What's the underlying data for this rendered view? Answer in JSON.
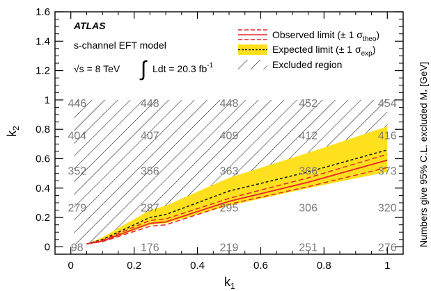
{
  "chart_data": {
    "type": "line",
    "title": "",
    "xlabel": "k",
    "xlabel_sub": "1",
    "ylabel": "k",
    "ylabel_sub": "2",
    "right_label": "Numbers give 95% C.L. excluded M",
    "right_label_sub": "*",
    "right_label_unit": " [GeV]",
    "xlim": [
      -0.05,
      1.05
    ],
    "ylim": [
      -0.05,
      1.6
    ],
    "xticks": [
      0,
      0.2,
      0.4,
      0.6,
      0.8,
      1
    ],
    "xtick_labels": [
      "0",
      "0.2",
      "0.4",
      "0.6",
      "0.8",
      "1"
    ],
    "yticks": [
      0,
      0.2,
      0.4,
      0.6,
      0.8,
      1,
      1.2,
      1.4,
      1.6
    ],
    "ytick_labels": [
      "0",
      "0.2",
      "0.4",
      "0.6",
      "0.8",
      "1",
      "1.2",
      "1.4",
      "1.6"
    ],
    "annotations": {
      "experiment": "ATLAS",
      "model": "s-channel EFT model",
      "sqrt_s_symbol": "√s",
      "sqrt_s_value": " = 8 TeV",
      "lumi_integral": "∫",
      "lumi_text": "Ldt = 20.3 fb",
      "lumi_sup": "-1"
    },
    "legend": {
      "placement": "top-right",
      "entries": [
        {
          "label": "Observed limit (± 1 σ",
          "sub": "theo",
          "close": ")",
          "style": "red-dashed-band"
        },
        {
          "label": "Expected limit (± 1 σ",
          "sub": "exp",
          "close": ")",
          "style": "yellow-band-dotted"
        },
        {
          "label": "Excluded region",
          "style": "hatch"
        }
      ]
    },
    "series": [
      {
        "name": "Observed limit",
        "x": [
          0.05,
          0.1,
          0.25,
          0.3,
          0.5,
          0.75,
          1.0
        ],
        "y": [
          0.02,
          0.04,
          0.16,
          0.17,
          0.31,
          0.44,
          0.59
        ]
      },
      {
        "name": "Observed +1σ",
        "x": [
          0.05,
          0.1,
          0.25,
          0.3,
          0.5,
          0.75,
          1.0
        ],
        "y": [
          0.02,
          0.045,
          0.18,
          0.19,
          0.33,
          0.47,
          0.63
        ]
      },
      {
        "name": "Observed -1σ",
        "x": [
          0.05,
          0.1,
          0.25,
          0.3,
          0.5,
          0.75,
          1.0
        ],
        "y": [
          0.02,
          0.035,
          0.14,
          0.15,
          0.29,
          0.41,
          0.54
        ]
      },
      {
        "name": "Expected limit",
        "x": [
          0.05,
          0.1,
          0.25,
          0.3,
          0.5,
          0.75,
          1.0
        ],
        "y": [
          0.02,
          0.05,
          0.2,
          0.22,
          0.38,
          0.51,
          0.66
        ]
      },
      {
        "name": "Expected +1σ",
        "x": [
          0.05,
          0.1,
          0.25,
          0.3,
          0.5,
          0.75,
          1.0
        ],
        "y": [
          0.02,
          0.065,
          0.25,
          0.28,
          0.47,
          0.64,
          0.82
        ]
      },
      {
        "name": "Expected -1σ",
        "x": [
          0.05,
          0.1,
          0.25,
          0.3,
          0.5,
          0.75,
          1.0
        ],
        "y": [
          0.02,
          0.035,
          0.15,
          0.16,
          0.28,
          0.4,
          0.51
        ]
      }
    ],
    "excluded_region_top": 1.0,
    "grid_numbers": [
      {
        "x": 0.02,
        "y": 0.98,
        "text": "446"
      },
      {
        "x": 0.25,
        "y": 0.98,
        "text": "448"
      },
      {
        "x": 0.5,
        "y": 0.98,
        "text": "448"
      },
      {
        "x": 0.75,
        "y": 0.98,
        "text": "452"
      },
      {
        "x": 1.0,
        "y": 0.98,
        "text": "454"
      },
      {
        "x": 0.02,
        "y": 0.76,
        "text": "404"
      },
      {
        "x": 0.25,
        "y": 0.76,
        "text": "407"
      },
      {
        "x": 0.5,
        "y": 0.76,
        "text": "409"
      },
      {
        "x": 0.75,
        "y": 0.76,
        "text": "412"
      },
      {
        "x": 1.0,
        "y": 0.76,
        "text": "416"
      },
      {
        "x": 0.02,
        "y": 0.52,
        "text": "352"
      },
      {
        "x": 0.25,
        "y": 0.52,
        "text": "356"
      },
      {
        "x": 0.5,
        "y": 0.52,
        "text": "363"
      },
      {
        "x": 0.75,
        "y": 0.52,
        "text": "366"
      },
      {
        "x": 1.0,
        "y": 0.52,
        "text": "373"
      },
      {
        "x": 0.02,
        "y": 0.27,
        "text": "279"
      },
      {
        "x": 0.25,
        "y": 0.27,
        "text": "287"
      },
      {
        "x": 0.5,
        "y": 0.27,
        "text": "295"
      },
      {
        "x": 0.75,
        "y": 0.27,
        "text": "306"
      },
      {
        "x": 1.0,
        "y": 0.27,
        "text": "320"
      },
      {
        "x": 0.02,
        "y": 0.0,
        "text": "98"
      },
      {
        "x": 0.25,
        "y": 0.0,
        "text": "176"
      },
      {
        "x": 0.5,
        "y": 0.0,
        "text": "219"
      },
      {
        "x": 0.75,
        "y": 0.0,
        "text": "251"
      },
      {
        "x": 1.0,
        "y": 0.0,
        "text": "276"
      }
    ],
    "colors": {
      "observed": "#e8242a",
      "expected": "#1a1a1a",
      "expected_band": "#ffe01e",
      "grid_numbers": "#7a7a7a",
      "hatch": "#000000"
    }
  }
}
